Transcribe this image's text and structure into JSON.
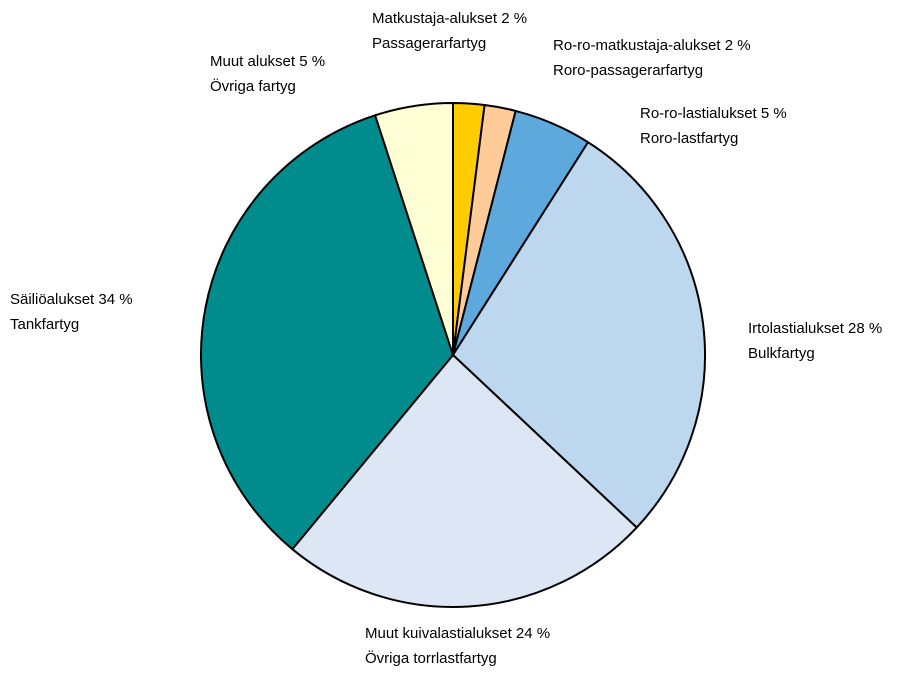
{
  "chart_data": {
    "type": "pie",
    "title": "",
    "slices": [
      {
        "label_fi": "Matkustaja-alukset 2 %",
        "label_sv": "Passagerarfartyg",
        "value": 2,
        "color": "#FFCC00"
      },
      {
        "label_fi": "Ro-ro-matkustaja-alukset 2 %",
        "label_sv": "Roro-passagerarfartyg",
        "value": 2,
        "color": "#FFCC99"
      },
      {
        "label_fi": "Ro-ro-lastialukset 5 %",
        "label_sv": "Roro-lastfartyg",
        "value": 5,
        "color": "#5DA9DD"
      },
      {
        "label_fi": "Irtolastialukset 28 %",
        "label_sv": "Bulkfartyg",
        "value": 28,
        "color": "#BDD7EE"
      },
      {
        "label_fi": "Muut kuivalastialukset 24 %",
        "label_sv": "Övriga torrlastfartyg",
        "value": 24,
        "color": "#DCE6F4"
      },
      {
        "label_fi": "Säiliöalukset 34 %",
        "label_sv": "Tankfartyg",
        "value": 34,
        "color": "#008C8C"
      },
      {
        "label_fi": "Muut alukset 5 %",
        "label_sv": "Övriga fartyg",
        "value": 5,
        "color": "#FFFFD6"
      }
    ],
    "start": "top",
    "direction": "clockwise",
    "outline_color": "#000000"
  }
}
